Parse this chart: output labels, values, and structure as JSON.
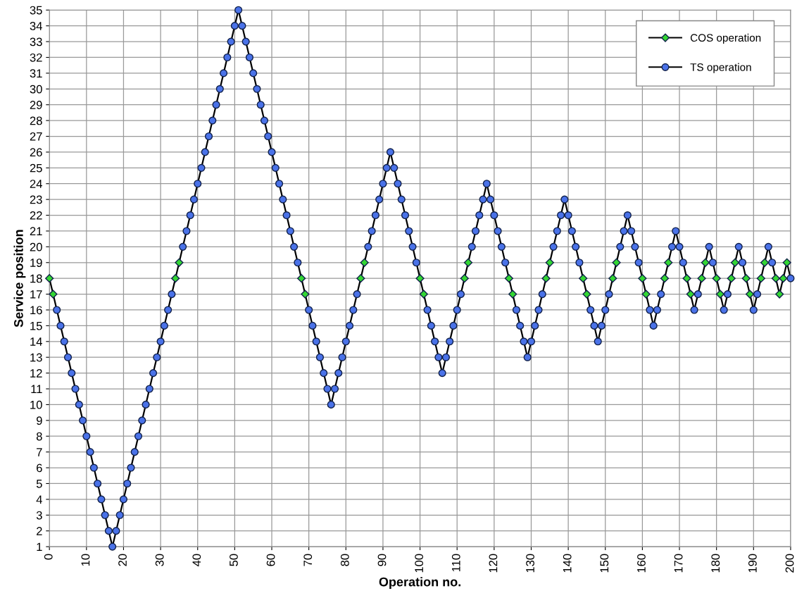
{
  "chart_data": {
    "type": "line",
    "xlabel": "Operation no.",
    "ylabel": "Service position",
    "xlim": [
      0,
      200
    ],
    "xticks": [
      0,
      10,
      20,
      30,
      40,
      50,
      60,
      70,
      80,
      90,
      100,
      110,
      120,
      130,
      140,
      150,
      160,
      170,
      180,
      190,
      200
    ],
    "ylim": [
      1,
      35
    ],
    "yticks": [
      1,
      2,
      3,
      4,
      5,
      6,
      7,
      8,
      9,
      10,
      11,
      12,
      13,
      14,
      15,
      16,
      17,
      18,
      19,
      20,
      21,
      22,
      23,
      24,
      25,
      26,
      27,
      28,
      29,
      30,
      31,
      32,
      33,
      34,
      35
    ],
    "grid": true,
    "legend": "top right",
    "x": [
      0,
      1,
      2,
      3,
      4,
      5,
      6,
      7,
      8,
      9,
      10,
      11,
      12,
      13,
      14,
      15,
      16,
      17,
      18,
      19,
      20,
      21,
      22,
      23,
      24,
      25,
      26,
      27,
      28,
      29,
      30,
      31,
      32,
      33,
      34,
      35,
      36,
      37,
      38,
      39,
      40,
      41,
      42,
      43,
      44,
      45,
      46,
      47,
      48,
      49,
      50,
      51,
      52,
      53,
      54,
      55,
      56,
      57,
      58,
      59,
      60,
      61,
      62,
      63,
      64,
      65,
      66,
      67,
      68,
      69,
      70,
      71,
      72,
      73,
      74,
      75,
      76,
      77,
      78,
      79,
      80,
      81,
      82,
      83,
      84,
      85,
      86,
      87,
      88,
      89,
      90,
      91,
      92,
      93,
      94,
      95,
      96,
      97,
      98,
      99,
      100,
      101,
      102,
      103,
      104,
      105,
      106,
      107,
      108,
      109,
      110,
      111,
      112,
      113,
      114,
      115,
      116,
      117,
      118,
      119,
      120,
      121,
      122,
      123,
      124,
      125,
      126,
      127,
      128,
      129,
      130,
      131,
      132,
      133,
      134,
      135,
      136,
      137,
      138,
      139,
      140,
      141,
      142,
      143,
      144,
      145,
      146,
      147,
      148,
      149,
      150,
      151,
      152,
      153,
      154,
      155,
      156,
      157,
      158,
      159,
      160,
      161,
      162,
      163,
      164,
      165,
      166,
      167,
      168,
      169,
      170,
      171,
      172,
      173,
      174,
      175,
      176,
      177,
      178,
      179,
      180,
      181,
      182,
      183,
      184,
      185,
      186,
      187,
      188,
      189,
      190,
      191,
      192,
      193,
      194,
      195,
      196,
      197,
      198,
      199,
      200
    ],
    "series": [
      {
        "color": "#000000",
        "marker": "none",
        "line_style": "solid",
        "values": [
          18,
          17,
          16,
          15,
          14,
          13,
          12,
          11,
          10,
          9,
          8,
          7,
          6,
          5,
          4,
          3,
          2,
          1,
          2,
          3,
          4,
          5,
          6,
          7,
          8,
          9,
          10,
          11,
          12,
          13,
          14,
          15,
          16,
          17,
          18,
          19,
          20,
          21,
          22,
          23,
          24,
          25,
          26,
          27,
          28,
          29,
          30,
          31,
          32,
          33,
          34,
          35,
          34,
          33,
          32,
          31,
          30,
          29,
          28,
          27,
          26,
          25,
          24,
          23,
          22,
          21,
          20,
          19,
          18,
          17,
          16,
          15,
          14,
          13,
          12,
          11,
          10,
          11,
          12,
          13,
          14,
          15,
          16,
          17,
          18,
          19,
          20,
          21,
          22,
          23,
          24,
          25,
          26,
          25,
          24,
          23,
          22,
          21,
          20,
          19,
          18,
          17,
          16,
          15,
          14,
          13,
          12,
          13,
          14,
          15,
          16,
          17,
          18,
          19,
          20,
          21,
          22,
          23,
          24,
          23,
          22,
          21,
          20,
          19,
          18,
          17,
          16,
          15,
          14,
          13,
          14,
          15,
          16,
          17,
          18,
          19,
          20,
          21,
          22,
          23,
          22,
          21,
          20,
          19,
          18,
          17,
          16,
          15,
          14,
          15,
          16,
          17,
          18,
          19,
          20,
          21,
          22,
          21,
          20,
          19,
          18,
          17,
          16,
          15,
          16,
          17,
          18,
          19,
          20,
          21,
          20,
          19,
          18,
          17,
          16,
          17,
          18,
          19,
          20,
          19,
          18,
          17,
          16,
          17,
          18,
          19,
          20,
          19,
          18,
          17,
          16,
          17,
          18,
          19,
          20,
          19,
          18,
          17,
          18,
          19,
          18
        ]
      },
      {
        "type": "scatter",
        "name": "COS operation",
        "color": "#33d633",
        "marker": "diamond",
        "x": [
          0,
          1,
          34,
          35,
          68,
          69,
          84,
          85,
          100,
          101,
          112,
          113,
          124,
          125,
          134,
          135,
          144,
          145,
          152,
          153,
          160,
          161,
          166,
          167,
          172,
          173,
          176,
          177,
          180,
          181,
          184,
          185,
          188,
          189,
          192,
          193,
          196,
          197,
          198,
          199
        ],
        "values": [
          18,
          17,
          18,
          19,
          18,
          17,
          18,
          19,
          18,
          17,
          18,
          19,
          18,
          17,
          18,
          19,
          18,
          17,
          18,
          19,
          18,
          17,
          18,
          19,
          18,
          17,
          18,
          19,
          18,
          17,
          18,
          19,
          18,
          17,
          18,
          19,
          18,
          17,
          18,
          19
        ]
      },
      {
        "type": "scatter",
        "name": "TS operation",
        "color": "#4a72e8",
        "marker": "circle",
        "values": [
          null,
          null,
          16,
          15,
          14,
          13,
          12,
          11,
          10,
          9,
          8,
          7,
          6,
          5,
          4,
          3,
          2,
          1,
          2,
          3,
          4,
          5,
          6,
          7,
          8,
          9,
          10,
          11,
          12,
          13,
          14,
          15,
          16,
          17,
          null,
          null,
          20,
          21,
          22,
          23,
          24,
          25,
          26,
          27,
          28,
          29,
          30,
          31,
          32,
          33,
          34,
          35,
          34,
          33,
          32,
          31,
          30,
          29,
          28,
          27,
          26,
          25,
          24,
          23,
          22,
          21,
          20,
          19,
          null,
          null,
          16,
          15,
          14,
          13,
          12,
          11,
          10,
          11,
          12,
          13,
          14,
          15,
          16,
          17,
          null,
          null,
          20,
          21,
          22,
          23,
          24,
          25,
          26,
          25,
          24,
          23,
          22,
          21,
          20,
          19,
          null,
          null,
          16,
          15,
          14,
          13,
          12,
          13,
          14,
          15,
          16,
          17,
          null,
          null,
          20,
          21,
          22,
          23,
          24,
          23,
          22,
          21,
          20,
          19,
          null,
          null,
          16,
          15,
          14,
          13,
          14,
          15,
          16,
          17,
          null,
          null,
          20,
          21,
          22,
          23,
          22,
          21,
          20,
          19,
          null,
          null,
          16,
          15,
          14,
          15,
          16,
          17,
          null,
          null,
          20,
          21,
          22,
          21,
          20,
          19,
          null,
          null,
          16,
          15,
          16,
          17,
          null,
          null,
          20,
          21,
          20,
          19,
          null,
          null,
          16,
          17,
          null,
          null,
          20,
          19,
          null,
          null,
          16,
          17,
          null,
          null,
          20,
          19,
          null,
          null,
          16,
          17,
          null,
          null,
          20,
          19,
          null,
          null,
          null,
          null,
          18
        ]
      }
    ]
  }
}
